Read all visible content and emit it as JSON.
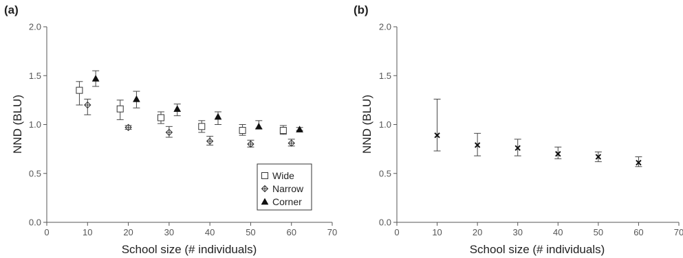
{
  "chart_data": [
    {
      "type": "scatter",
      "panel_label": "(a)",
      "xlabel": "School size (# individuals)",
      "ylabel": "NND (BLU)",
      "xlim": [
        0,
        70
      ],
      "ylim": [
        0,
        2.0
      ],
      "xticks": [
        "0",
        "10",
        "20",
        "30",
        "40",
        "50",
        "60",
        "70"
      ],
      "yticks": [
        "0.0",
        "0.5",
        "1.0",
        "1.5",
        "2.0"
      ],
      "grid": false,
      "legend": {
        "position": "bottom-right",
        "entries": [
          "Wide",
          "Narrow",
          "Corner"
        ]
      },
      "series": [
        {
          "name": "Wide",
          "marker": "square-open",
          "x": [
            8,
            18,
            28,
            38,
            48,
            58
          ],
          "y": [
            1.35,
            1.16,
            1.07,
            0.98,
            0.94,
            0.94
          ],
          "y_low": [
            1.2,
            1.05,
            1.01,
            0.92,
            0.89,
            0.9
          ],
          "y_high": [
            1.44,
            1.25,
            1.13,
            1.04,
            1.0,
            0.99
          ]
        },
        {
          "name": "Narrow",
          "marker": "diamond-crossed",
          "x": [
            10,
            20,
            30,
            40,
            50,
            60
          ],
          "y": [
            1.2,
            0.97,
            0.92,
            0.83,
            0.8,
            0.81
          ],
          "y_low": [
            1.1,
            0.95,
            0.87,
            0.79,
            0.77,
            0.78
          ],
          "y_high": [
            1.26,
            0.99,
            0.98,
            0.88,
            0.84,
            0.85
          ]
        },
        {
          "name": "Corner",
          "marker": "triangle-filled",
          "x": [
            12,
            22,
            32,
            42,
            52,
            62
          ],
          "y": [
            1.47,
            1.26,
            1.16,
            1.08,
            0.98,
            0.95
          ],
          "y_low": [
            1.39,
            1.17,
            1.09,
            1.0,
            0.96,
            0.94
          ],
          "y_high": [
            1.55,
            1.34,
            1.21,
            1.13,
            1.04,
            0.97
          ]
        }
      ]
    },
    {
      "type": "scatter",
      "panel_label": "(b)",
      "xlabel": "School size (# individuals)",
      "ylabel": "NND (BLU)",
      "xlim": [
        0,
        70
      ],
      "ylim": [
        0,
        2.0
      ],
      "xticks": [
        "0",
        "10",
        "20",
        "30",
        "40",
        "50",
        "60",
        "70"
      ],
      "yticks": [
        "0.0",
        "0.5",
        "1.0",
        "1.5",
        "2.0"
      ],
      "grid": false,
      "series": [
        {
          "marker": "x",
          "x": [
            10,
            20,
            30,
            40,
            50,
            60
          ],
          "y": [
            0.89,
            0.79,
            0.76,
            0.7,
            0.67,
            0.61
          ],
          "y_low": [
            0.73,
            0.68,
            0.68,
            0.65,
            0.62,
            0.57
          ],
          "y_high": [
            1.26,
            0.91,
            0.85,
            0.77,
            0.72,
            0.67
          ]
        }
      ]
    }
  ]
}
